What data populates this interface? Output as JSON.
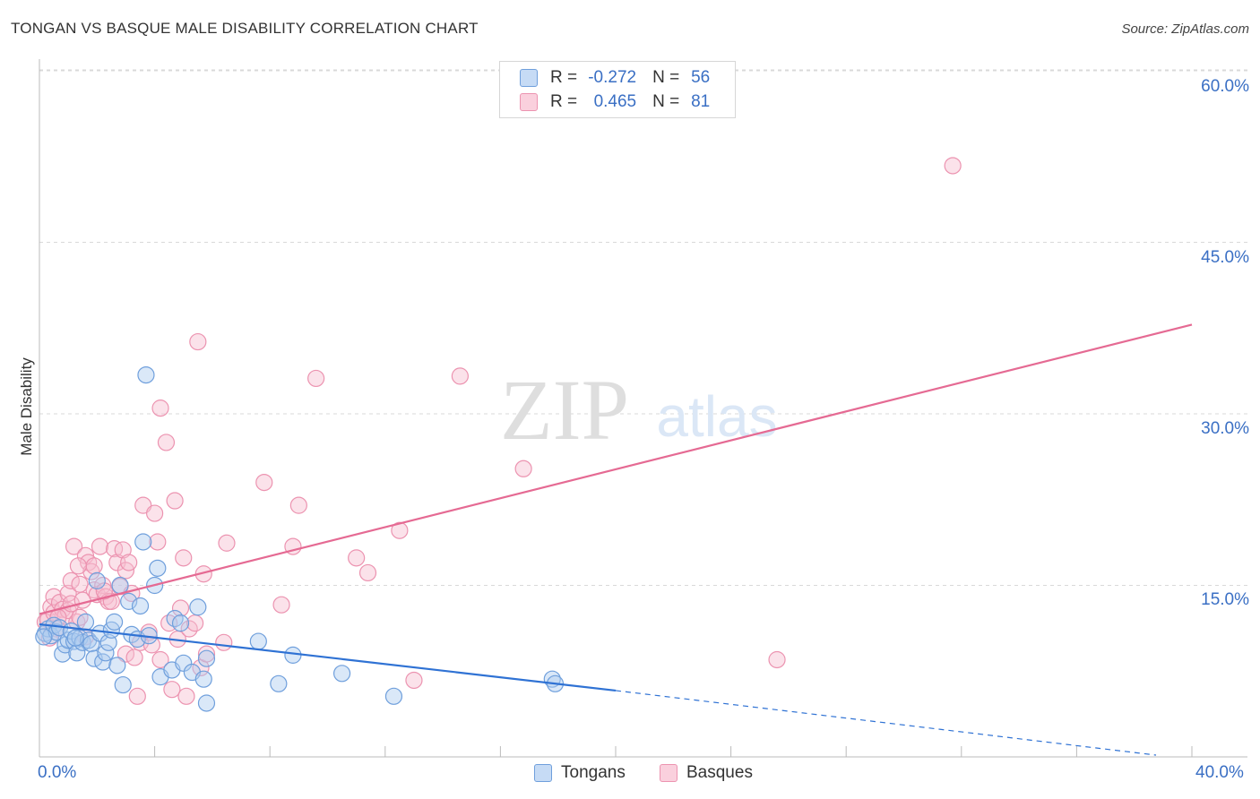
{
  "title": "TONGAN VS BASQUE MALE DISABILITY CORRELATION CHART",
  "source": "Source: ZipAtlas.com",
  "watermark_left": "ZIP",
  "watermark_right": "atlas",
  "stats": [
    {
      "r_label": "R =",
      "r_value": "-0.272",
      "n_label": "N =",
      "n_value": "56"
    },
    {
      "r_label": "R =",
      "r_value": "0.465",
      "n_label": "N =",
      "n_value": "81"
    }
  ],
  "colors": {
    "tongans_fill": "#aecbf0",
    "tongans_stroke": "#6f9fdc",
    "tongans_line": "#2f72d4",
    "basques_fill": "#f7bfd0",
    "basques_stroke": "#ec93b0",
    "basques_line": "#e56a93",
    "tick_text": "#3a6fc4"
  },
  "chart_data": {
    "type": "scatter",
    "title": "TONGAN VS BASQUE MALE DISABILITY CORRELATION CHART",
    "xlabel": "",
    "ylabel": "Male Disability",
    "xlim": [
      0,
      40
    ],
    "ylim": [
      0,
      60
    ],
    "x_tick_labels": {
      "min": "0.0%",
      "max": "40.0%"
    },
    "y_ticks": [
      15,
      30,
      45,
      60
    ],
    "y_tick_labels": [
      "15.0%",
      "30.0%",
      "45.0%",
      "60.0%"
    ],
    "legend": [
      "Tongans",
      "Basques"
    ],
    "legend_position": "bottom-center",
    "series": [
      {
        "name": "Tongans",
        "r": -0.272,
        "n": 56,
        "trend": {
          "x0": 0,
          "y0": 11.6,
          "x1": 20,
          "y1": 5.8,
          "dashed_to_x": 40,
          "dashed_to_y": 0
        },
        "points": [
          [
            0.2,
            10.8
          ],
          [
            0.3,
            11.2
          ],
          [
            0.4,
            10.6
          ],
          [
            0.5,
            11.5
          ],
          [
            0.6,
            10.9
          ],
          [
            0.7,
            11.3
          ],
          [
            0.8,
            9.0
          ],
          [
            0.9,
            9.8
          ],
          [
            1.0,
            10.2
          ],
          [
            1.1,
            11.0
          ],
          [
            1.2,
            10.1
          ],
          [
            1.3,
            9.1
          ],
          [
            1.4,
            10.4
          ],
          [
            1.5,
            10.0
          ],
          [
            1.6,
            11.8
          ],
          [
            1.7,
            10.2
          ],
          [
            1.8,
            9.9
          ],
          [
            1.9,
            8.6
          ],
          [
            2.0,
            15.4
          ],
          [
            2.1,
            10.8
          ],
          [
            2.2,
            8.3
          ],
          [
            2.3,
            9.1
          ],
          [
            2.4,
            10.0
          ],
          [
            2.5,
            11.1
          ],
          [
            2.6,
            11.8
          ],
          [
            2.7,
            8.0
          ],
          [
            2.8,
            15.0
          ],
          [
            2.9,
            6.3
          ],
          [
            3.1,
            13.6
          ],
          [
            3.2,
            10.7
          ],
          [
            3.4,
            10.3
          ],
          [
            3.5,
            13.2
          ],
          [
            3.6,
            18.8
          ],
          [
            3.7,
            33.4
          ],
          [
            3.8,
            10.6
          ],
          [
            4.0,
            15.0
          ],
          [
            4.1,
            16.5
          ],
          [
            4.2,
            7.0
          ],
          [
            4.6,
            7.6
          ],
          [
            4.7,
            12.1
          ],
          [
            4.9,
            11.7
          ],
          [
            5.0,
            8.2
          ],
          [
            5.3,
            7.4
          ],
          [
            5.5,
            13.1
          ],
          [
            5.7,
            6.8
          ],
          [
            5.8,
            4.7
          ],
          [
            5.8,
            8.6
          ],
          [
            7.6,
            10.1
          ],
          [
            8.3,
            6.4
          ],
          [
            8.8,
            8.9
          ],
          [
            10.5,
            7.3
          ],
          [
            12.3,
            5.3
          ],
          [
            17.8,
            6.8
          ],
          [
            17.9,
            6.4
          ],
          [
            0.15,
            10.5
          ],
          [
            1.25,
            10.4
          ]
        ]
      },
      {
        "name": "Basques",
        "r": 0.465,
        "n": 81,
        "trend": {
          "x0": 0,
          "y0": 12.5,
          "x1": 40,
          "y1": 37.8
        },
        "points": [
          [
            0.2,
            11.8
          ],
          [
            0.3,
            12.0
          ],
          [
            0.4,
            13.1
          ],
          [
            0.5,
            12.6
          ],
          [
            0.5,
            14.0
          ],
          [
            0.6,
            11.2
          ],
          [
            0.7,
            13.5
          ],
          [
            0.8,
            12.9
          ],
          [
            0.9,
            12.3
          ],
          [
            1.0,
            14.3
          ],
          [
            1.0,
            12.8
          ],
          [
            1.1,
            13.4
          ],
          [
            1.1,
            15.4
          ],
          [
            1.2,
            18.4
          ],
          [
            1.3,
            11.8
          ],
          [
            1.4,
            15.1
          ],
          [
            1.4,
            12.2
          ],
          [
            1.5,
            13.7
          ],
          [
            1.6,
            10.5
          ],
          [
            1.6,
            17.6
          ],
          [
            1.7,
            17.0
          ],
          [
            1.8,
            16.2
          ],
          [
            1.9,
            14.6
          ],
          [
            1.9,
            16.7
          ],
          [
            2.0,
            14.2
          ],
          [
            2.1,
            18.4
          ],
          [
            2.2,
            15.0
          ],
          [
            2.3,
            14.0
          ],
          [
            2.4,
            13.6
          ],
          [
            2.5,
            13.6
          ],
          [
            2.6,
            18.2
          ],
          [
            2.7,
            17.0
          ],
          [
            2.8,
            14.9
          ],
          [
            2.9,
            18.1
          ],
          [
            3.0,
            16.3
          ],
          [
            3.0,
            9.0
          ],
          [
            3.1,
            17.0
          ],
          [
            3.2,
            14.3
          ],
          [
            3.3,
            8.7
          ],
          [
            3.4,
            5.3
          ],
          [
            3.5,
            10.0
          ],
          [
            3.6,
            22.0
          ],
          [
            3.8,
            10.9
          ],
          [
            3.9,
            9.8
          ],
          [
            4.0,
            21.3
          ],
          [
            4.1,
            18.8
          ],
          [
            4.2,
            30.5
          ],
          [
            4.2,
            8.5
          ],
          [
            4.4,
            27.5
          ],
          [
            4.5,
            11.7
          ],
          [
            4.6,
            5.9
          ],
          [
            4.7,
            22.4
          ],
          [
            4.8,
            10.3
          ],
          [
            4.9,
            13.0
          ],
          [
            5.0,
            17.4
          ],
          [
            5.1,
            5.3
          ],
          [
            5.2,
            11.2
          ],
          [
            5.4,
            11.7
          ],
          [
            5.5,
            36.3
          ],
          [
            5.6,
            7.8
          ],
          [
            5.7,
            16.0
          ],
          [
            5.8,
            9.0
          ],
          [
            6.4,
            10.0
          ],
          [
            6.5,
            18.7
          ],
          [
            7.8,
            24.0
          ],
          [
            8.4,
            13.3
          ],
          [
            8.8,
            18.4
          ],
          [
            9.0,
            22.0
          ],
          [
            9.6,
            33.1
          ],
          [
            11.0,
            17.4
          ],
          [
            11.4,
            16.1
          ],
          [
            12.5,
            19.8
          ],
          [
            13.0,
            6.7
          ],
          [
            14.6,
            33.3
          ],
          [
            16.8,
            25.2
          ],
          [
            25.6,
            8.5
          ],
          [
            31.7,
            51.7
          ],
          [
            0.35,
            10.4
          ],
          [
            0.65,
            12.2
          ],
          [
            1.35,
            16.7
          ],
          [
            2.25,
            14.5
          ]
        ]
      }
    ]
  },
  "legend": {
    "tongans_label": "Tongans",
    "basques_label": "Basques"
  }
}
